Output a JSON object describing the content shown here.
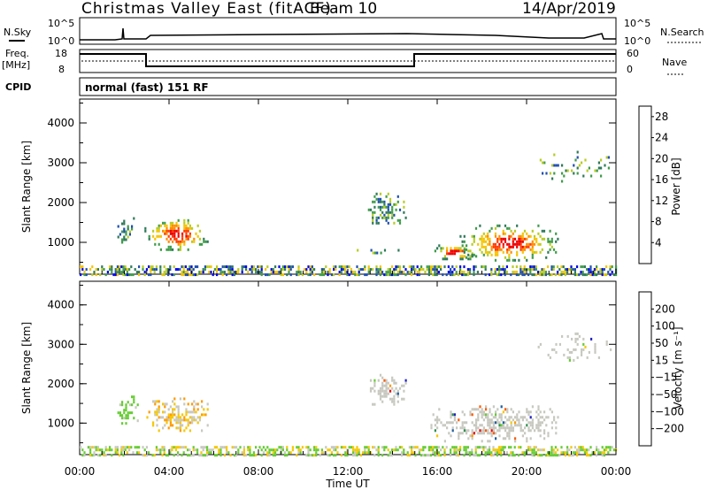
{
  "header": {
    "title": "Christmas Valley East (fitACF)",
    "beam": "Beam 10",
    "date": "14/Apr/2019"
  },
  "panels": {
    "nsky": {
      "label": "N.Sky",
      "tick_top": "10^5",
      "tick_bottom": "10^0",
      "right_label": "N.Search",
      "right_tick_top": "10^5",
      "right_tick_bottom": "10^0"
    },
    "freq": {
      "label_top": "Freq.",
      "label_bottom": "[MHz]",
      "ticks": [
        "18",
        "8"
      ],
      "right_label": "Nave",
      "right_ticks": [
        "60",
        "0"
      ]
    },
    "cpid": {
      "label": "CPID",
      "mode": "normal (fast) 151 RF"
    }
  },
  "colors": {
    "power": [
      "#0000ee",
      "#1f4fb0",
      "#2f7a5a",
      "#3f9c4a",
      "#b8cc22",
      "#f5c400",
      "#ff8c00",
      "#ff3c00",
      "#ee0000"
    ],
    "velocity": [
      "#ee0000",
      "#ff5a00",
      "#ff9a00",
      "#f5c800",
      "#c8c8c0",
      "#66cc33",
      "#2f8f4f",
      "#1f5fa0",
      "#2020c0"
    ]
  },
  "chart_data": [
    {
      "type": "heatmap",
      "name": "power",
      "ylabel": "Slant Range [km]",
      "yticks": [
        "1000",
        "2000",
        "3000",
        "4000"
      ],
      "ylim": [
        200,
        4600
      ],
      "x_range_hours": [
        0,
        24
      ],
      "colorbar": {
        "label": "Power [dB]",
        "ticks": [
          "4",
          "8",
          "12",
          "16",
          "20",
          "24",
          "28"
        ],
        "range": [
          0,
          30
        ]
      },
      "regions": [
        {
          "t0": 1.6,
          "t1": 2.6,
          "r0": 1000,
          "r1": 1700,
          "kind": "mixed_low"
        },
        {
          "t0": 2.9,
          "t1": 5.7,
          "r0": 800,
          "r1": 1650,
          "kind": "hot_core"
        },
        {
          "t0": 12.9,
          "t1": 14.6,
          "r0": 1450,
          "r1": 2250,
          "kind": "mid"
        },
        {
          "t0": 12.4,
          "t1": 15.0,
          "r0": 700,
          "r1": 900,
          "kind": "low_sparse"
        },
        {
          "t0": 15.7,
          "t1": 17.8,
          "r0": 600,
          "r1": 950,
          "kind": "hot_strip"
        },
        {
          "t0": 17.0,
          "t1": 21.4,
          "r0": 550,
          "r1": 1450,
          "kind": "hot_blob"
        },
        {
          "t0": 20.5,
          "t1": 23.8,
          "r0": 2500,
          "r1": 3300,
          "kind": "mid_sparse"
        },
        {
          "t0": 0.0,
          "t1": 24.0,
          "r0": 200,
          "r1": 420,
          "kind": "ground"
        }
      ]
    },
    {
      "type": "heatmap",
      "name": "velocity",
      "ylabel": "Slant Range [km]",
      "yticks": [
        "1000",
        "2000",
        "3000",
        "4000"
      ],
      "ylim": [
        200,
        4600
      ],
      "x_range_hours": [
        0,
        24
      ],
      "colorbar": {
        "label": "Velocity [m s⁻¹]",
        "ticks": [
          "200",
          "100",
          "50",
          "15",
          "−15",
          "−50",
          "−100",
          "−200"
        ],
        "range": [
          -250,
          250
        ]
      },
      "xticks": [
        "00:00",
        "04:00",
        "08:00",
        "12:00",
        "16:00",
        "20:00",
        "00:00"
      ],
      "xlabel": "Time UT",
      "regions": [
        {
          "t0": 1.6,
          "t1": 2.6,
          "r0": 1000,
          "r1": 1700,
          "kind": "green"
        },
        {
          "t0": 2.9,
          "t1": 5.7,
          "r0": 800,
          "r1": 1650,
          "kind": "orange_gray"
        },
        {
          "t0": 12.9,
          "t1": 14.6,
          "r0": 1450,
          "r1": 2250,
          "kind": "gray"
        },
        {
          "t0": 15.7,
          "t1": 21.4,
          "r0": 550,
          "r1": 1450,
          "kind": "gray"
        },
        {
          "t0": 20.5,
          "t1": 23.8,
          "r0": 2500,
          "r1": 3300,
          "kind": "gray_sparse"
        },
        {
          "t0": 0.0,
          "t1": 24.0,
          "r0": 200,
          "r1": 420,
          "kind": "ground"
        }
      ]
    }
  ]
}
